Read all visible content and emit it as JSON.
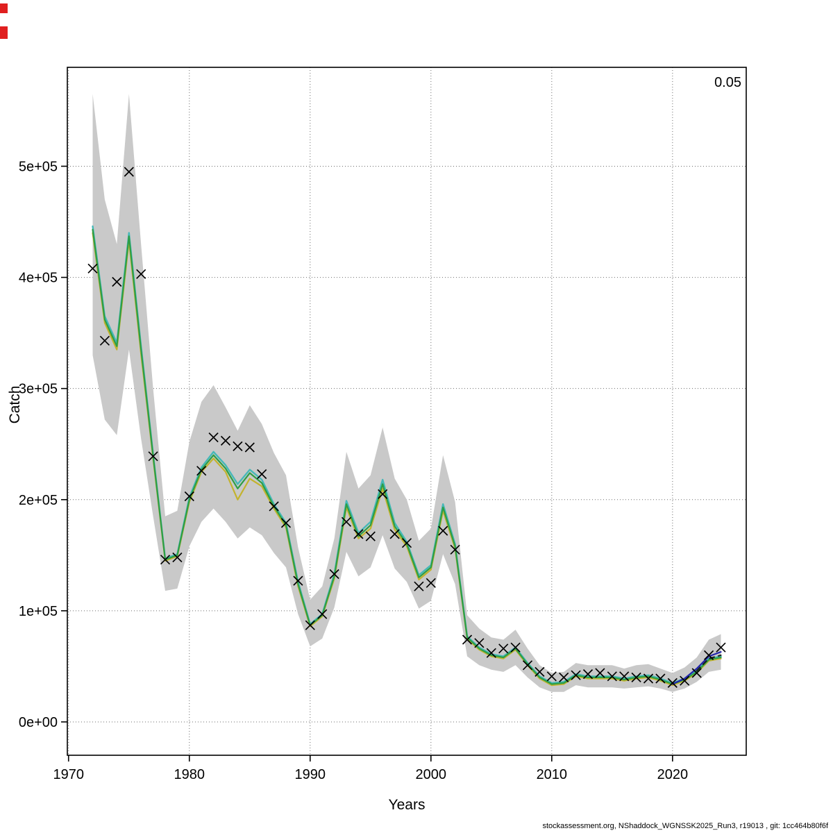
{
  "labels": {
    "ylabel": "Catch",
    "xlabel": "Years",
    "annotation": "0.05",
    "footer": "stockassessment.org, NShaddock_WGNSSK2025_Run3, r19013 , git: 1cc464b80f6f"
  },
  "chart_data": {
    "type": "line",
    "title": "",
    "xlabel": "Years",
    "ylabel": "Catch",
    "annotation": "0.05",
    "grid": true,
    "grid_style": "dotted",
    "band_color": "#c9c9c9",
    "marker": "x",
    "xlim": [
      1969.9,
      2026.1
    ],
    "ylim": [
      -30000,
      589000
    ],
    "x_ticks": [
      1970,
      1980,
      1990,
      2000,
      2010,
      2020
    ],
    "x_tick_labels": [
      "1970",
      "1980",
      "1990",
      "2000",
      "2010",
      "2020"
    ],
    "y_ticks": [
      0,
      100000,
      200000,
      300000,
      400000,
      500000
    ],
    "y_tick_labels": [
      "0e+00",
      "1e+05",
      "2e+05",
      "3e+05",
      "4e+05",
      "5e+05"
    ],
    "years": [
      1972,
      1973,
      1974,
      1975,
      1976,
      1977,
      1978,
      1979,
      1980,
      1981,
      1982,
      1983,
      1984,
      1985,
      1986,
      1987,
      1988,
      1989,
      1990,
      1991,
      1992,
      1993,
      1994,
      1995,
      1996,
      1997,
      1998,
      1999,
      2000,
      2001,
      2002,
      2003,
      2004,
      2005,
      2006,
      2007,
      2008,
      2009,
      2010,
      2011,
      2012,
      2013,
      2014,
      2015,
      2016,
      2017,
      2018,
      2019,
      2020,
      2021,
      2022,
      2023,
      2024
    ],
    "band_upper": [
      565000,
      470000,
      430000,
      565000,
      430000,
      300000,
      185000,
      190000,
      252000,
      288000,
      303000,
      283000,
      262000,
      285000,
      268000,
      242000,
      222000,
      157000,
      110000,
      122000,
      165000,
      243000,
      210000,
      222000,
      265000,
      219000,
      200000,
      163000,
      174000,
      240000,
      198000,
      96000,
      84000,
      76000,
      74000,
      83000,
      66000,
      51000,
      44000,
      45000,
      53000,
      51000,
      51000,
      51000,
      48000,
      51000,
      52000,
      48000,
      44000,
      49000,
      58000,
      74000,
      79000
    ],
    "band_lower": [
      330000,
      272000,
      258000,
      335000,
      255000,
      185000,
      118000,
      120000,
      158000,
      180000,
      192000,
      180000,
      165000,
      175000,
      168000,
      152000,
      139000,
      97000,
      68000,
      75000,
      103000,
      153000,
      131000,
      139000,
      168000,
      138000,
      126000,
      102000,
      109000,
      151000,
      124000,
      59000,
      51000,
      47000,
      45000,
      51000,
      40000,
      31000,
      27000,
      27000,
      33000,
      31000,
      31000,
      31000,
      30000,
      31000,
      32000,
      30000,
      27000,
      30000,
      36000,
      45000,
      47000
    ],
    "observed": [
      408000,
      343000,
      396000,
      495000,
      403000,
      239000,
      146000,
      148000,
      203000,
      226000,
      256000,
      253000,
      248000,
      247000,
      223000,
      194000,
      179000,
      127000,
      87000,
      97000,
      133000,
      180000,
      169000,
      167000,
      205000,
      169000,
      161000,
      122000,
      125000,
      172000,
      155000,
      74000,
      71000,
      62000,
      66000,
      67000,
      51000,
      45000,
      41000,
      40000,
      42000,
      43000,
      44000,
      41000,
      41000,
      40000,
      39000,
      39000,
      35000,
      37000,
      44000,
      60000,
      67000
    ],
    "series": [
      {
        "name": "fit-cyan",
        "color": "#45b8b8",
        "width": 2.4,
        "dash": "",
        "values": [
          446000,
          365000,
          341000,
          440000,
          338000,
          241000,
          147000,
          151000,
          202000,
          229000,
          243000,
          231000,
          214000,
          227000,
          218000,
          196000,
          179000,
          126000,
          88000,
          97000,
          133000,
          199000,
          170000,
          180000,
          218000,
          179000,
          162000,
          132000,
          141000,
          196000,
          160000,
          77000,
          67000,
          61000,
          59000,
          67000,
          53000,
          41000,
          35000,
          36000,
          43000,
          41000,
          41000,
          41000,
          39000,
          41000,
          42000,
          39000,
          35000,
          39000,
          46000,
          57000,
          59000
        ]
      },
      {
        "name": "fit-yellow",
        "color": "#c3b32e",
        "width": 2.2,
        "dash": "",
        "values": [
          440000,
          359000,
          335000,
          433000,
          331000,
          237000,
          145000,
          149000,
          198000,
          225000,
          237000,
          225000,
          200000,
          219000,
          212000,
          192000,
          175000,
          122000,
          86000,
          95000,
          129000,
          193000,
          165000,
          174000,
          210000,
          173000,
          158000,
          128000,
          137000,
          190000,
          156000,
          75000,
          65000,
          59000,
          57000,
          65000,
          51000,
          39000,
          33000,
          34000,
          41000,
          39000,
          39000,
          39000,
          37000,
          39000,
          40000,
          37000,
          33000,
          37000,
          44000,
          55000,
          57000
        ]
      },
      {
        "name": "fit-green",
        "color": "#2e9e45",
        "width": 2.2,
        "dash": "",
        "values": [
          443000,
          362000,
          338000,
          437000,
          335000,
          239000,
          146000,
          150000,
          200000,
          227000,
          240000,
          228000,
          210000,
          224000,
          215000,
          194000,
          177000,
          124000,
          87000,
          96000,
          131000,
          196000,
          167000,
          177000,
          214000,
          176000,
          160000,
          130000,
          139000,
          193000,
          158000,
          76000,
          66000,
          60000,
          58000,
          66000,
          52000,
          40000,
          34000,
          35000,
          42000,
          40000,
          40000,
          40000,
          38000,
          40000,
          41000,
          38000,
          34000,
          38000,
          45000,
          56000,
          58000
        ]
      },
      {
        "name": "fit-blue",
        "color": "#2323ad",
        "width": 2.2,
        "dash": "",
        "values": [
          null,
          null,
          null,
          null,
          null,
          null,
          null,
          null,
          null,
          null,
          null,
          null,
          null,
          null,
          null,
          null,
          null,
          null,
          null,
          null,
          null,
          null,
          null,
          null,
          null,
          null,
          null,
          null,
          null,
          null,
          null,
          null,
          null,
          null,
          null,
          null,
          null,
          null,
          null,
          null,
          null,
          null,
          null,
          null,
          null,
          null,
          null,
          null,
          34000,
          39000,
          48000,
          59000,
          63000
        ]
      },
      {
        "name": "forecast-dashed",
        "color": "#1a1a1a",
        "width": 2.0,
        "dash": "7 6",
        "values": [
          null,
          null,
          null,
          null,
          null,
          null,
          null,
          null,
          null,
          null,
          null,
          null,
          null,
          null,
          null,
          null,
          null,
          null,
          null,
          null,
          null,
          null,
          null,
          null,
          null,
          null,
          null,
          null,
          null,
          null,
          null,
          null,
          null,
          null,
          null,
          null,
          null,
          null,
          null,
          null,
          null,
          null,
          null,
          null,
          null,
          null,
          null,
          null,
          null,
          null,
          46000,
          57000,
          60000
        ]
      }
    ]
  }
}
